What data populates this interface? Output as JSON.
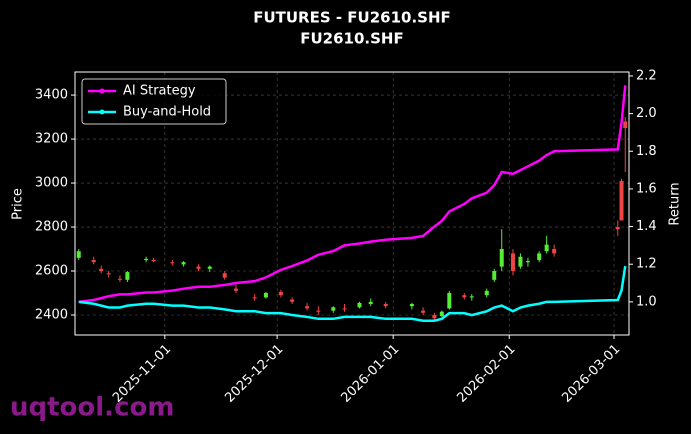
{
  "chart_data": {
    "type": "candlestick",
    "title": "FUTURES - FU2610.SHF",
    "subtitle": "FU2610.SHF",
    "y_label": "Price",
    "y2_label": "Return",
    "watermark": "uqtool.com",
    "up_color": "#55ee33",
    "down_color": "#ee4444",
    "grid": true,
    "legend": "upper left",
    "x": [
      "2025-10-09",
      "2025-10-13",
      "2025-10-15",
      "2025-10-17",
      "2025-10-20",
      "2025-10-22",
      "2025-10-27",
      "2025-10-29",
      "2025-11-03",
      "2025-11-06",
      "2025-11-10",
      "2025-11-13",
      "2025-11-17",
      "2025-11-20",
      "2025-11-25",
      "2025-11-28",
      "2025-12-02",
      "2025-12-05",
      "2025-12-09",
      "2025-12-12",
      "2025-12-16",
      "2025-12-19",
      "2025-12-23",
      "2025-12-26",
      "2025-12-30",
      "2026-01-06",
      "2026-01-09",
      "2026-01-12",
      "2026-01-14",
      "2026-01-16",
      "2026-01-20",
      "2026-01-22",
      "2026-01-26",
      "2026-01-28",
      "2026-01-30",
      "2026-02-02",
      "2026-02-04",
      "2026-02-06",
      "2026-02-09",
      "2026-02-11",
      "2026-02-13",
      "2026-03-02",
      "2026-03-03",
      "2026-03-04"
    ],
    "open": [
      2660,
      2650,
      2610,
      2590,
      2565,
      2560,
      2650,
      2650,
      2640,
      2630,
      2620,
      2610,
      2590,
      2520,
      2480,
      2480,
      2505,
      2470,
      2440,
      2420,
      2420,
      2430,
      2435,
      2450,
      2450,
      2440,
      2420,
      2400,
      2395,
      2430,
      2490,
      2480,
      2490,
      2560,
      2620,
      2680,
      2620,
      2640,
      2650,
      2690,
      2700,
      2800,
      3010,
      3280
    ],
    "high": [
      2700,
      2665,
      2625,
      2600,
      2580,
      2600,
      2665,
      2660,
      2650,
      2645,
      2630,
      2625,
      2600,
      2540,
      2495,
      2505,
      2515,
      2480,
      2455,
      2440,
      2440,
      2450,
      2460,
      2475,
      2460,
      2455,
      2435,
      2410,
      2420,
      2510,
      2500,
      2495,
      2520,
      2610,
      2790,
      2700,
      2680,
      2660,
      2690,
      2760,
      2720,
      2830,
      3020,
      3300
    ],
    "low": [
      2650,
      2630,
      2590,
      2570,
      2550,
      2550,
      2640,
      2640,
      2625,
      2620,
      2600,
      2595,
      2560,
      2500,
      2465,
      2475,
      2480,
      2450,
      2420,
      2400,
      2410,
      2415,
      2430,
      2440,
      2430,
      2425,
      2400,
      2375,
      2390,
      2425,
      2470,
      2465,
      2480,
      2550,
      2600,
      2580,
      2610,
      2620,
      2640,
      2680,
      2665,
      2760,
      2830,
      3050
    ],
    "close": [
      2690,
      2640,
      2600,
      2585,
      2560,
      2595,
      2655,
      2645,
      2635,
      2640,
      2610,
      2620,
      2570,
      2510,
      2475,
      2500,
      2490,
      2460,
      2430,
      2415,
      2435,
      2425,
      2455,
      2460,
      2440,
      2450,
      2410,
      2385,
      2415,
      2500,
      2480,
      2485,
      2510,
      2600,
      2700,
      2600,
      2665,
      2645,
      2680,
      2720,
      2680,
      2790,
      2830,
      3250
    ],
    "series": [
      {
        "name": "AI Strategy",
        "color": "#ff00ff",
        "axis": "y2",
        "values": [
          1.0,
          1.01,
          1.02,
          1.03,
          1.04,
          1.04,
          1.05,
          1.05,
          1.06,
          1.07,
          1.08,
          1.08,
          1.09,
          1.1,
          1.11,
          1.13,
          1.17,
          1.19,
          1.22,
          1.25,
          1.27,
          1.3,
          1.31,
          1.32,
          1.33,
          1.34,
          1.35,
          1.4,
          1.43,
          1.48,
          1.52,
          1.55,
          1.58,
          1.62,
          1.69,
          1.68,
          1.7,
          1.72,
          1.75,
          1.78,
          1.8,
          1.81,
          1.95,
          2.15
        ]
      },
      {
        "name": "Buy-and-Hold",
        "color": "#00ffff",
        "axis": "y2",
        "values": [
          1.0,
          0.99,
          0.98,
          0.97,
          0.97,
          0.98,
          0.99,
          0.99,
          0.98,
          0.98,
          0.97,
          0.97,
          0.96,
          0.95,
          0.95,
          0.94,
          0.94,
          0.93,
          0.92,
          0.91,
          0.91,
          0.92,
          0.92,
          0.92,
          0.91,
          0.91,
          0.9,
          0.9,
          0.91,
          0.94,
          0.94,
          0.93,
          0.95,
          0.97,
          0.98,
          0.95,
          0.97,
          0.98,
          0.99,
          1.0,
          1.0,
          1.01,
          1.06,
          1.19
        ]
      }
    ],
    "xlim": [
      "2025-10-08",
      "2026-03-05"
    ],
    "xticks": [
      "2025-11-01",
      "2025-12-01",
      "2026-01-01",
      "2026-02-01",
      "2026-03-01"
    ],
    "ylim": [
      2309,
      3505
    ],
    "yticks": [
      2400,
      2600,
      2800,
      3000,
      3200,
      3400
    ],
    "y2lim": [
      0.824,
      2.221
    ],
    "y2ticks": [
      {
        "value": 1.0,
        "label": "1.0"
      },
      {
        "value": 1.2,
        "label": "1.2"
      },
      {
        "value": 1.4,
        "label": "1.4"
      },
      {
        "value": 1.6,
        "label": "1.6"
      },
      {
        "value": 1.8,
        "label": "1.8"
      },
      {
        "value": 2.0,
        "label": "2.0"
      },
      {
        "value": 2.2,
        "label": "2.2"
      }
    ]
  }
}
